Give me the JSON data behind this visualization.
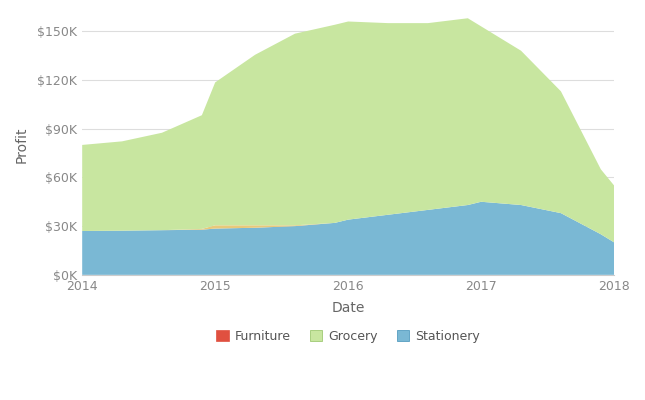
{
  "xlabel": "Date",
  "ylabel": "Profit",
  "background_color": "#ffffff",
  "plot_bg_color": "#ffffff",
  "grid_color": "#dddddd",
  "x": [
    2014.0,
    2014.3,
    2014.6,
    2014.9,
    2015.0,
    2015.3,
    2015.6,
    2015.9,
    2016.0,
    2016.3,
    2016.6,
    2016.9,
    2017.0,
    2017.3,
    2017.6,
    2017.9,
    2018.0
  ],
  "furniture": [
    0,
    0,
    0,
    500,
    2000,
    1500,
    500,
    0,
    0,
    0,
    0,
    0,
    0,
    0,
    0,
    0,
    0
  ],
  "grocery": [
    53000,
    55000,
    60000,
    70000,
    88000,
    105000,
    118000,
    122000,
    122000,
    118000,
    115000,
    115000,
    108000,
    95000,
    75000,
    40000,
    35000
  ],
  "stationery": [
    27000,
    27200,
    27500,
    27800,
    28500,
    29000,
    30000,
    32000,
    34000,
    37000,
    40000,
    43000,
    45000,
    43000,
    38000,
    25000,
    20000
  ],
  "furniture_color": "#e8c97a",
  "grocery_color": "#c8e6a0",
  "stationery_color": "#7ab8d4",
  "ylim": [
    0,
    160000
  ],
  "xlim": [
    2014,
    2018
  ],
  "yticks": [
    0,
    30000,
    60000,
    90000,
    120000,
    150000
  ],
  "ytick_labels": [
    "$0K",
    "$30K",
    "$60K",
    "$90K",
    "$120K",
    "$150K"
  ],
  "xticks": [
    2014,
    2015,
    2016,
    2017,
    2018
  ],
  "xtick_labels": [
    "2014",
    "2015",
    "2016",
    "2017",
    "2018"
  ],
  "legend_labels": [
    "Furniture",
    "Grocery",
    "Stationery"
  ],
  "legend_colors": [
    "#e8764a",
    "#c8e6a0",
    "#7ab8d4"
  ],
  "legend_edge_colors": [
    "#e8764a",
    "#90c060",
    "#4090b8"
  ],
  "figsize": [
    6.45,
    4.0
  ],
  "dpi": 100
}
